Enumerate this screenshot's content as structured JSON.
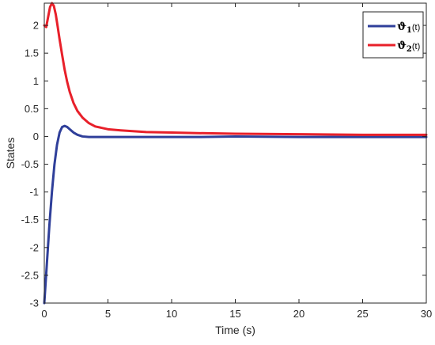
{
  "chart_data": {
    "type": "line",
    "title": "",
    "xlabel": "Time (s)",
    "ylabel": "States",
    "xlim": [
      0,
      30
    ],
    "ylim": [
      -3,
      2.4
    ],
    "xticks": [
      0,
      5,
      10,
      15,
      20,
      25,
      30
    ],
    "xtick_labels": [
      "0",
      "5",
      "10",
      "15",
      "20",
      "25",
      "30"
    ],
    "yticks": [
      2,
      1.5,
      1,
      0.5,
      0,
      -0.5,
      -1,
      -1.5,
      -2,
      -2.5,
      -3
    ],
    "ytick_labels": [
      "2",
      "1.5",
      "1",
      "0.5",
      "0",
      "-0.5",
      "-1",
      "-1.5",
      "-2",
      "-2.5",
      "-3"
    ],
    "grid": false,
    "legend_position": "top-right",
    "series": [
      {
        "name": "ϑ1(t)",
        "legend": {
          "symbol": "ϑ",
          "sub": "1",
          "arg": "(t)"
        },
        "color": "#2f3f9a",
        "x": [
          0,
          0.2,
          0.4,
          0.6,
          0.8,
          1.0,
          1.2,
          1.4,
          1.6,
          1.8,
          2.0,
          2.3,
          2.6,
          3.0,
          3.5,
          4.0,
          5.0,
          6.0,
          8.0,
          10,
          12,
          15,
          20,
          25,
          30
        ],
        "y": [
          -3.0,
          -2.3,
          -1.6,
          -1.0,
          -0.5,
          -0.15,
          0.07,
          0.17,
          0.19,
          0.17,
          0.13,
          0.07,
          0.03,
          0.0,
          -0.01,
          -0.01,
          -0.01,
          -0.01,
          -0.01,
          -0.01,
          -0.01,
          0.0,
          -0.01,
          -0.01,
          -0.01
        ]
      },
      {
        "name": "ϑ2(t)",
        "legend": {
          "symbol": "ϑ",
          "sub": "2",
          "arg": "(t)"
        },
        "color": "#e8202a",
        "x": [
          0,
          0.15,
          0.3,
          0.45,
          0.6,
          0.75,
          0.9,
          1.05,
          1.2,
          1.4,
          1.6,
          1.8,
          2.0,
          2.3,
          2.6,
          3.0,
          3.5,
          4.0,
          5.0,
          6.0,
          8.0,
          10,
          12,
          15,
          20,
          25,
          30
        ],
        "y": [
          2.0,
          1.97,
          2.15,
          2.33,
          2.4,
          2.35,
          2.2,
          1.98,
          1.75,
          1.47,
          1.2,
          0.98,
          0.8,
          0.6,
          0.46,
          0.34,
          0.24,
          0.18,
          0.13,
          0.11,
          0.08,
          0.07,
          0.06,
          0.05,
          0.04,
          0.03,
          0.03
        ]
      }
    ]
  }
}
